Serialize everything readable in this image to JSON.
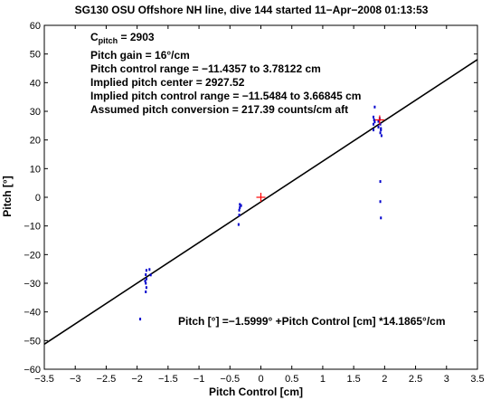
{
  "chart_data": {
    "type": "scatter",
    "title": "SG130 OSU Offshore NH line, dive 144 started 11−Apr−2008 01:13:53",
    "xlabel": "Pitch Control [cm]",
    "ylabel": "Pitch [°]",
    "xlim": [
      -3.5,
      3.5
    ],
    "ylim": [
      -60,
      60
    ],
    "xticks": [
      -3.5,
      -3,
      -2.5,
      -2,
      -1.5,
      -1,
      -0.5,
      0,
      0.5,
      1,
      1.5,
      2,
      2.5,
      3,
      3.5
    ],
    "xtick_labels": [
      "−3.5",
      "−3",
      "−2.5",
      "−2",
      "−1.5",
      "−1",
      "−0.5",
      "0",
      "0.5",
      "1",
      "1.5",
      "2",
      "2.5",
      "3",
      "3.5"
    ],
    "yticks": [
      -60,
      -50,
      -40,
      -30,
      -20,
      -10,
      0,
      10,
      20,
      30,
      40,
      50,
      60
    ],
    "ytick_labels": [
      "−60",
      "−50",
      "−40",
      "−30",
      "−20",
      "−10",
      "0",
      "10",
      "20",
      "30",
      "40",
      "50",
      "60"
    ],
    "grid": false,
    "colors": {
      "points": "#0000cc",
      "fit": "#000000",
      "marker": "#ff0000"
    },
    "series": [
      {
        "type": "scatter",
        "points": [
          [
            -1.85,
            -25.5
          ],
          [
            -1.86,
            -27
          ],
          [
            -1.85,
            -28.5
          ],
          [
            -1.86,
            -30
          ],
          [
            -1.85,
            -31.5
          ],
          [
            -1.86,
            -33
          ],
          [
            -1.87,
            -29.2
          ],
          [
            -1.8,
            -25.2
          ],
          [
            -1.78,
            -27.1
          ],
          [
            -1.95,
            -42.5
          ],
          [
            -0.34,
            -2.5
          ],
          [
            -0.35,
            -4.5
          ],
          [
            -0.35,
            -6.2
          ],
          [
            -0.34,
            -3.6
          ],
          [
            -0.32,
            -2.9
          ],
          [
            -0.36,
            -9.5
          ],
          [
            1.82,
            23.5
          ],
          [
            1.82,
            25.5
          ],
          [
            1.83,
            27
          ],
          [
            1.82,
            28
          ],
          [
            1.84,
            26.3
          ],
          [
            1.84,
            31.5
          ],
          [
            1.9,
            26.5
          ],
          [
            1.9,
            24.5
          ],
          [
            1.92,
            27.5
          ],
          [
            1.93,
            22.5
          ],
          [
            1.94,
            24
          ],
          [
            1.93,
            25.5
          ],
          [
            1.94,
            23.5
          ],
          [
            1.95,
            21.5
          ],
          [
            1.93,
            5.5
          ],
          [
            1.93,
            -1.5
          ],
          [
            1.94,
            -7.2
          ]
        ]
      },
      {
        "type": "line",
        "slope": 14.1865,
        "intercept": -1.5999
      },
      {
        "type": "marker",
        "points": [
          [
            0,
            0
          ],
          [
            1.92,
            27
          ]
        ]
      }
    ],
    "annotations": {
      "c_prefix": "C",
      "c_subscript": "pitch",
      "c_value": " = 2903",
      "gain": "Pitch gain = 16°/cm",
      "range": "Pitch control range = −11.4357 to 3.78122 cm",
      "center": "Implied pitch center = 2927.52",
      "implied_range": "Implied pitch control range = −11.5484 to 3.66845 cm",
      "conversion": "Assumed pitch conversion = 217.39 counts/cm aft",
      "fit_equation": "Pitch [°] =−1.5999° +Pitch Control [cm] *14.1865°/cm"
    }
  }
}
